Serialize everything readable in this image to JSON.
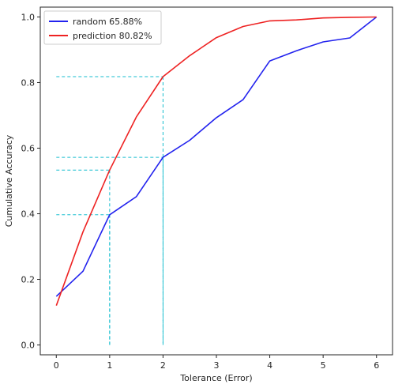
{
  "chart_data": {
    "type": "line",
    "title": "",
    "xlabel": "Tolerance (Error)",
    "ylabel": "Cumulative Accuracy",
    "xlim": [
      -0.3,
      6.3
    ],
    "ylim": [
      -0.03,
      1.03
    ],
    "x_ticks": [
      0,
      1,
      2,
      3,
      4,
      5,
      6
    ],
    "x_tick_labels": [
      "0",
      "1",
      "2",
      "3",
      "4",
      "5",
      "6"
    ],
    "y_ticks": [
      0.0,
      0.2,
      0.4,
      0.6,
      0.8,
      1.0
    ],
    "y_tick_labels": [
      "0.0",
      "0.2",
      "0.4",
      "0.6",
      "0.8",
      "1.0"
    ],
    "grid": false,
    "legend_position": "top-left",
    "series": [
      {
        "name": "random 65.88%",
        "color": "#2222ee",
        "x": [
          0,
          0.5,
          1,
          1.5,
          2,
          2.5,
          3,
          3.5,
          4,
          4.5,
          5,
          5.5,
          6
        ],
        "y": [
          0.148,
          0.225,
          0.397,
          0.452,
          0.572,
          0.624,
          0.693,
          0.748,
          0.866,
          0.897,
          0.924,
          0.936,
          1.0
        ]
      },
      {
        "name": "prediction 80.82%",
        "color": "#ee2222",
        "x": [
          0,
          0.5,
          1,
          1.5,
          2,
          2.5,
          3,
          3.5,
          4,
          4.5,
          5,
          5.5,
          6
        ],
        "y": [
          0.12,
          0.345,
          0.533,
          0.695,
          0.818,
          0.882,
          0.937,
          0.971,
          0.988,
          0.991,
          0.997,
          0.999,
          1.0
        ]
      }
    ],
    "reference_lines": {
      "color": "#17becf",
      "points": [
        {
          "x": 1,
          "y": 0.397
        },
        {
          "x": 1,
          "y": 0.533
        },
        {
          "x": 2,
          "y": 0.572
        },
        {
          "x": 2,
          "y": 0.818
        }
      ]
    }
  }
}
